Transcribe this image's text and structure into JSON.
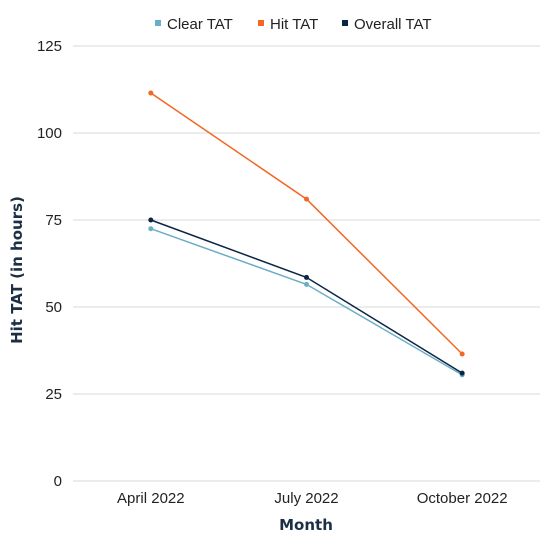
{
  "chart_data": {
    "type": "line",
    "categories": [
      "April 2022",
      "July 2022",
      "October 2022"
    ],
    "series": [
      {
        "name": "Clear TAT",
        "values": [
          72.5,
          56.5,
          30.5
        ],
        "color": "#6aaec5"
      },
      {
        "name": "Hit TAT",
        "values": [
          111.5,
          81,
          36.5
        ],
        "color": "#f26722"
      },
      {
        "name": "Overall TAT",
        "values": [
          75,
          58.5,
          31
        ],
        "color": "#0b2545"
      }
    ],
    "title": "",
    "xlabel": "Month",
    "ylabel": "Hit TAT (in hours)",
    "ylim": [
      0,
      125
    ],
    "yticks": [
      0,
      25,
      50,
      75,
      100,
      125
    ],
    "grid": true,
    "legend_position": "top"
  }
}
